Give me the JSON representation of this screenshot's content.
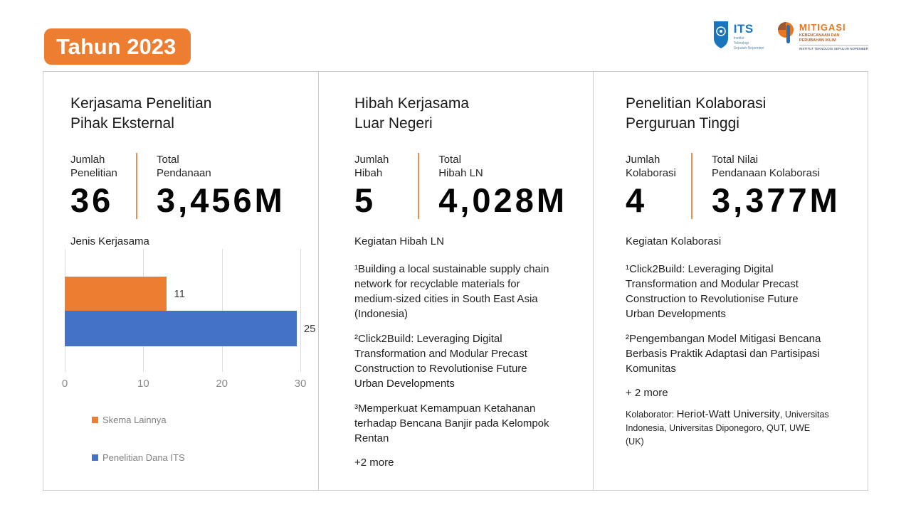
{
  "header": {
    "year_badge": "Tahun 2023"
  },
  "logos": {
    "its": {
      "abbr": "ITS",
      "caption": "Institut\nTeknologi\nSepuluh Nopember"
    },
    "mitigasi": {
      "title": "MITIGASI",
      "subtitle": "KEBENCANAAN DAN\nPERUBAHAN IKLIM",
      "caption": "INSTITUT TEKNOLOGI SEPULUH NOPEMBER"
    }
  },
  "columns": [
    {
      "title": "Kerjasama Penelitian\nPihak Eksternal",
      "stats": [
        {
          "label": "Jumlah\nPenelitian",
          "value": "36"
        },
        {
          "label": "Total\nPendanaan",
          "value": "3,456M"
        }
      ],
      "section_label": "Jenis Kerjasama"
    },
    {
      "title": "Hibah Kerjasama\nLuar Negeri",
      "stats": [
        {
          "label": "Jumlah\nHibah",
          "value": "5"
        },
        {
          "label": "Total\nHibah LN",
          "value": "4,028M"
        }
      ],
      "section_label": "Kegiatan Hibah LN",
      "items": [
        "¹Building a local sustainable supply chain\nnetwork for recyclable materials for\nmedium-sized cities in South East Asia\n(Indonesia)",
        "²Click2Build: Leveraging Digital\nTransformation and Modular Precast\nConstruction to Revolutionise Future\nUrban Developments",
        "³Memperkuat Kemampuan Ketahanan\nterhadap Bencana Banjir pada Kelompok\nRentan"
      ],
      "more_label": "+2 more"
    },
    {
      "title": "Penelitian Kolaborasi\nPerguruan Tinggi",
      "stats": [
        {
          "label": "Jumlah\nKolaborasi",
          "value": "4"
        },
        {
          "label": "Total Nilai\nPendanaan Kolaborasi",
          "value": "3,377M"
        }
      ],
      "section_label": "Kegiatan Kolaborasi",
      "items": [
        "¹Click2Build: Leveraging Digital\nTransformation and Modular Precast\nConstruction to Revolutionise Future\nUrban Developments",
        "²Pengembangan Model Mitigasi Bencana\nBerbasis Praktik Adaptasi dan Partisipasi\nKomunitas"
      ],
      "more_label": "+ 2 more",
      "kolaborator": {
        "label": "Kolaborator:",
        "primary": "Heriot-Watt University",
        "rest": ", Universitas\nIndonesia, Universitas Diponegoro, QUT, UWE\n(UK)"
      }
    }
  ],
  "chart_data": {
    "type": "bar",
    "orientation": "horizontal",
    "title": "Jenis Kerjasama",
    "categories": [
      "Skema Lainnya",
      "Penelitian Dana ITS"
    ],
    "values": [
      11,
      25
    ],
    "colors": [
      "#ED7D31",
      "#4472C4"
    ],
    "xlim": [
      0,
      30
    ],
    "xticks": [
      0,
      10,
      20,
      30
    ],
    "grid": true,
    "legend_position": "bottom-left"
  },
  "theme": {
    "accent_orange": "#ED7D31",
    "bar_blue": "#4472C4",
    "divider_orange": "#E0944F",
    "card_border": "#CBCBCB",
    "its_blue": "#1B75BC",
    "mitigasi_orange": "#E87722",
    "mitigasi_brown": "#9C5735"
  }
}
